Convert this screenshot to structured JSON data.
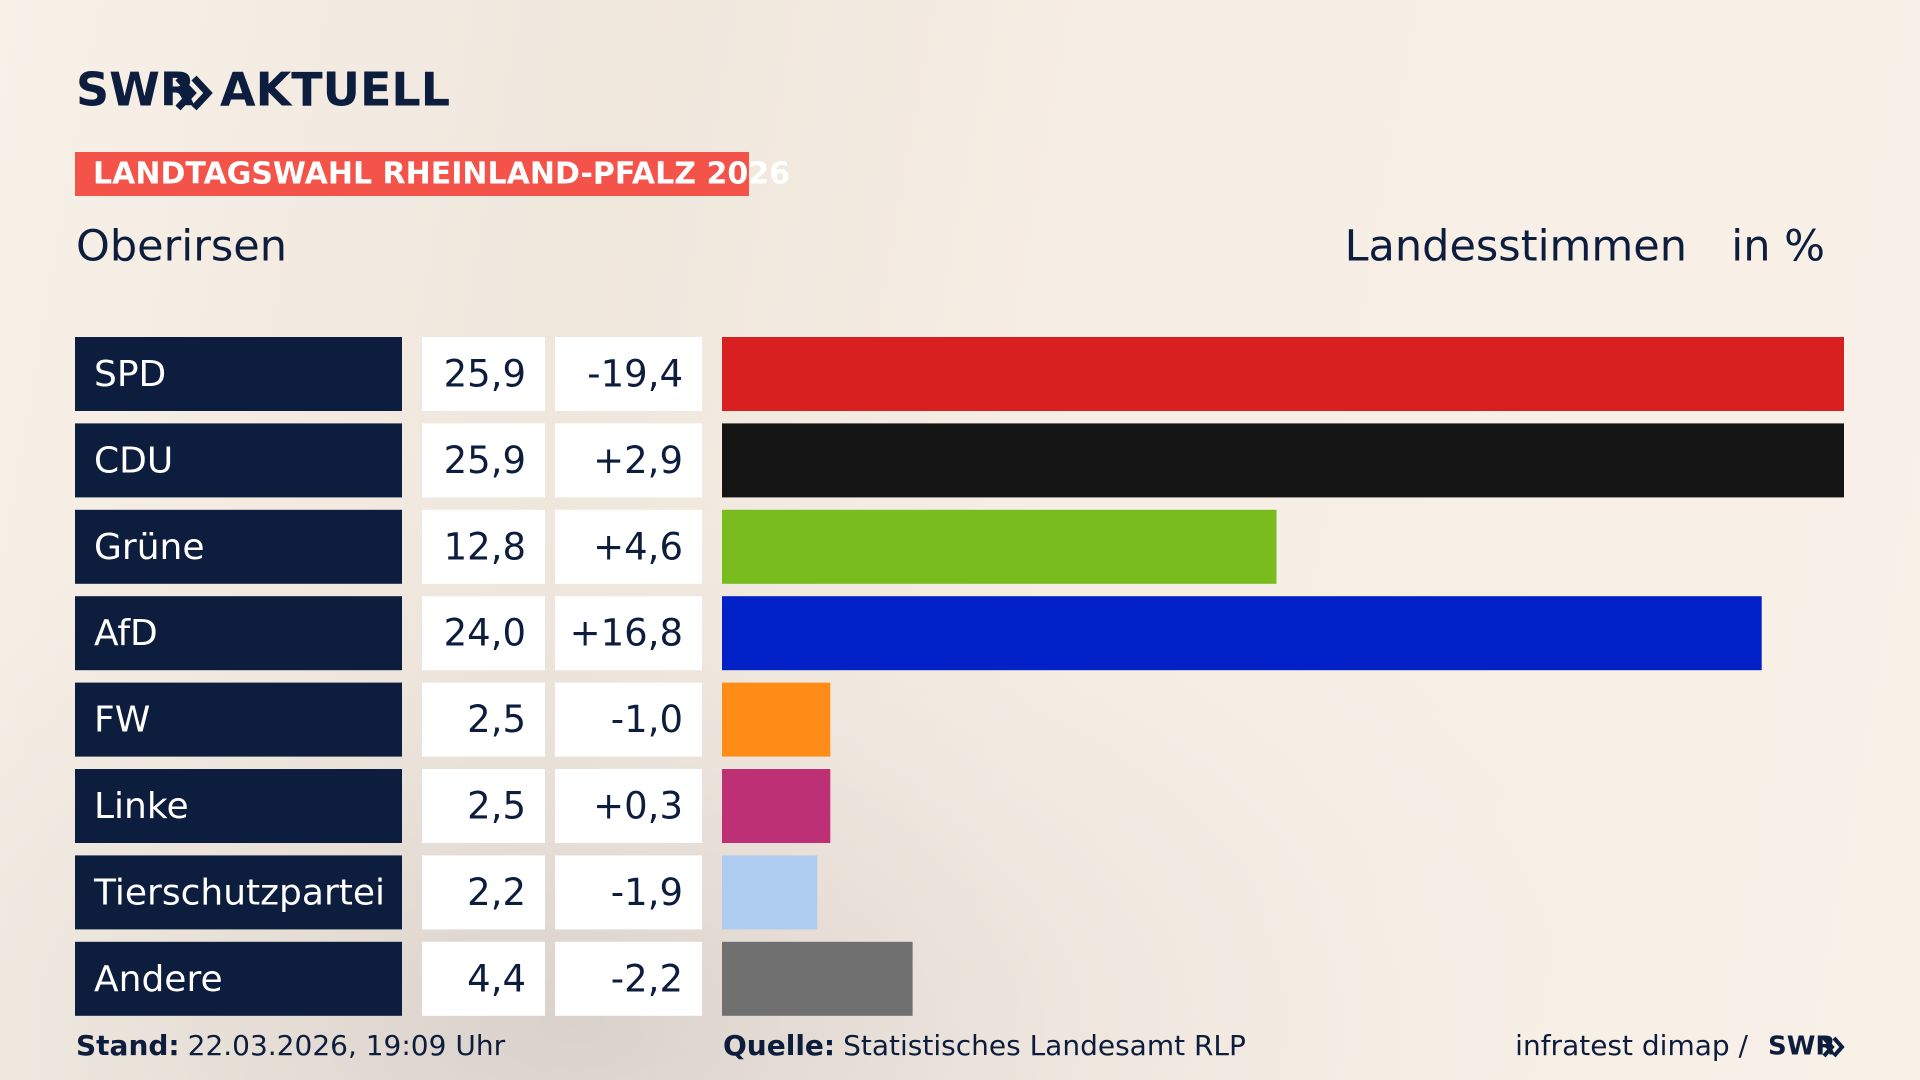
{
  "logo": "SWR",
  "logo_suffix": "AKTUELL",
  "chart_data": {
    "type": "bar",
    "title": "LANDTAGSWAHL RHEINLAND-PFALZ 2026",
    "subtitle": "Oberirsen",
    "measure": "Landesstimmen",
    "unit": "in %",
    "categories": [
      "SPD",
      "CDU",
      "Grüne",
      "AfD",
      "FW",
      "Linke",
      "Tierschutzpartei",
      "Andere"
    ],
    "values": [
      25.9,
      25.9,
      12.8,
      24.0,
      2.5,
      2.5,
      2.2,
      4.4
    ],
    "value_labels": [
      "25,9",
      "25,9",
      "12,8",
      "24,0",
      "2,5",
      "2,5",
      "2,2",
      "4,4"
    ],
    "changes": [
      -19.4,
      2.9,
      4.6,
      16.8,
      -1.0,
      0.3,
      -1.9,
      -2.2
    ],
    "change_labels": [
      "-19,4",
      "+2,9",
      "+4,6",
      "+16,8",
      "-1,0",
      "+0,3",
      "-1,9",
      "-2,2"
    ],
    "colors": [
      "#d7201f",
      "#141414",
      "#79bc1e",
      "#0020c8",
      "#ff8c17",
      "#bd3075",
      "#aecbf0",
      "#707070"
    ]
  },
  "footer": {
    "stand_label": "Stand:",
    "stand": "22.03.2026, 19:09 Uhr",
    "source_label": "Quelle:",
    "source": "Statistisches Landesamt RLP",
    "credit": "infratest dimap /",
    "credit_logo": "SWR"
  }
}
